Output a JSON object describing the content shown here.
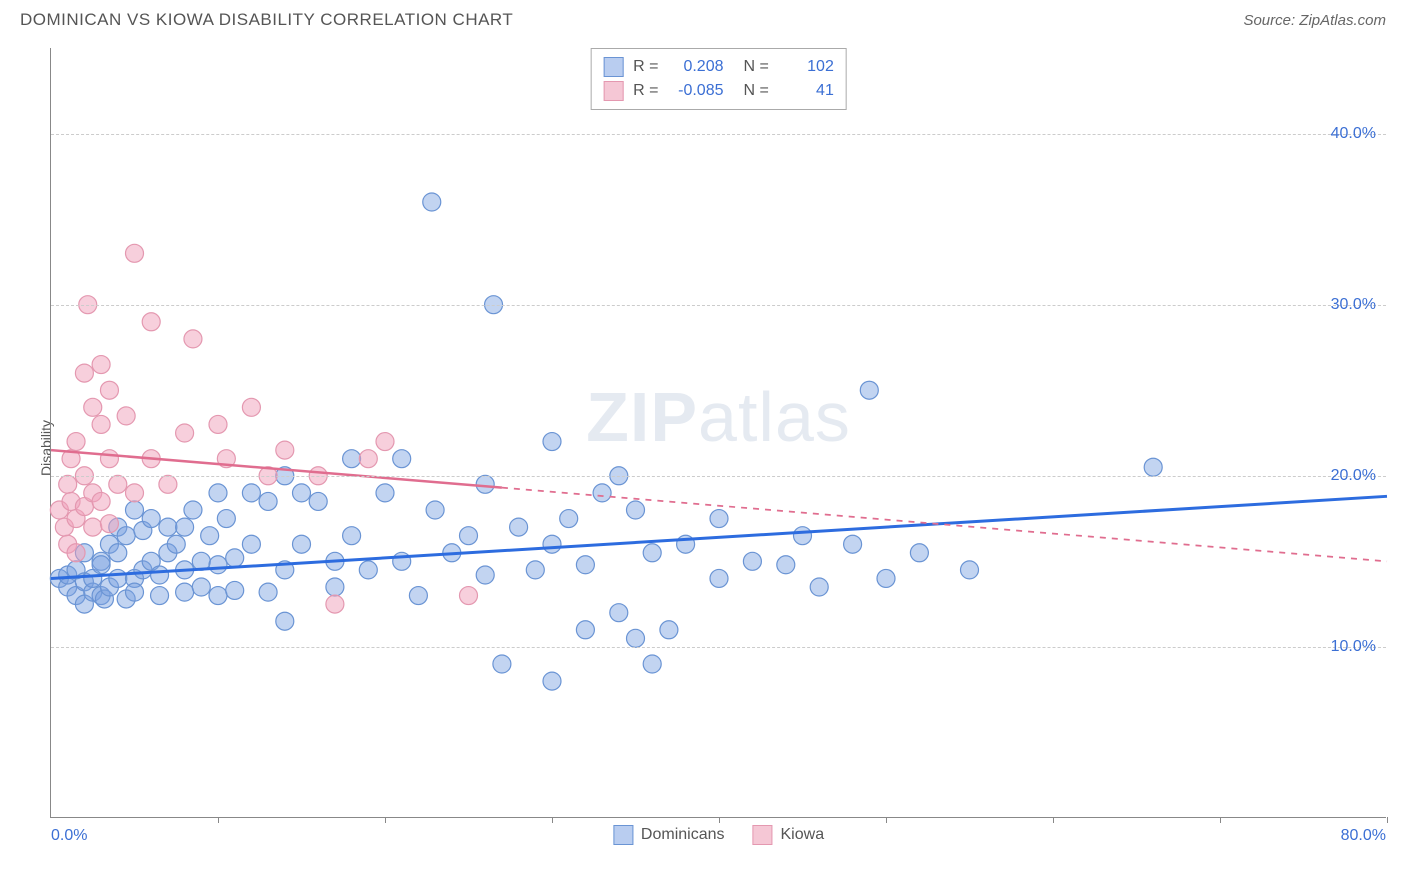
{
  "title": "DOMINICAN VS KIOWA DISABILITY CORRELATION CHART",
  "source": "Source: ZipAtlas.com",
  "watermark_bold": "ZIP",
  "watermark_light": "atlas",
  "ylabel": "Disability",
  "chart": {
    "type": "scatter",
    "xlim": [
      0,
      80
    ],
    "ylim": [
      0,
      45
    ],
    "background_color": "#ffffff",
    "grid_color": "#cccccc",
    "axis_color": "#888888",
    "tick_label_color": "#3b6fd4",
    "tick_fontsize": 16,
    "label_fontsize": 14,
    "gridlines_y": [
      10,
      20,
      30,
      40
    ],
    "ytick_labels": {
      "10": "10.0%",
      "20": "20.0%",
      "30": "30.0%",
      "40": "40.0%"
    },
    "xtick_positions": [
      0,
      10,
      20,
      30,
      40,
      50,
      60,
      70,
      80
    ],
    "xlim_label_left": "0.0%",
    "xlim_label_right": "80.0%",
    "marker_radius": 9,
    "marker_stroke_width": 1.2,
    "series": [
      {
        "name": "Dominicans",
        "color_fill": "rgba(120,160,225,0.45)",
        "color_stroke": "#6a94d4",
        "swatch_fill": "#b9cdf0",
        "swatch_border": "#6a94d4",
        "R": "0.208",
        "N": "102",
        "trend": {
          "x1": 0,
          "y1": 14,
          "x2": 80,
          "y2": 18.8,
          "solid_until_x": 80,
          "color": "#2d6cdf",
          "width": 3
        },
        "points": [
          [
            0.5,
            14
          ],
          [
            1,
            13.5
          ],
          [
            1,
            14.2
          ],
          [
            1.5,
            13
          ],
          [
            1.5,
            14.5
          ],
          [
            2,
            12.5
          ],
          [
            2,
            13.8
          ],
          [
            2,
            15.5
          ],
          [
            2.5,
            13.2
          ],
          [
            2.5,
            14
          ],
          [
            3,
            15
          ],
          [
            3,
            13
          ],
          [
            3,
            14.8
          ],
          [
            3.2,
            12.8
          ],
          [
            3.5,
            16
          ],
          [
            3.5,
            13.5
          ],
          [
            4,
            14
          ],
          [
            4,
            15.5
          ],
          [
            4,
            17
          ],
          [
            4.5,
            12.8
          ],
          [
            4.5,
            16.5
          ],
          [
            5,
            14
          ],
          [
            5,
            18
          ],
          [
            5,
            13.2
          ],
          [
            5.5,
            16.8
          ],
          [
            5.5,
            14.5
          ],
          [
            6,
            15
          ],
          [
            6,
            17.5
          ],
          [
            6.5,
            13
          ],
          [
            6.5,
            14.2
          ],
          [
            7,
            17
          ],
          [
            7,
            15.5
          ],
          [
            7.5,
            16
          ],
          [
            8,
            13.2
          ],
          [
            8,
            14.5
          ],
          [
            8,
            17
          ],
          [
            8.5,
            18
          ],
          [
            9,
            15
          ],
          [
            9,
            13.5
          ],
          [
            9.5,
            16.5
          ],
          [
            10,
            13
          ],
          [
            10,
            14.8
          ],
          [
            10,
            19
          ],
          [
            10.5,
            17.5
          ],
          [
            11,
            15.2
          ],
          [
            11,
            13.3
          ],
          [
            12,
            19
          ],
          [
            12,
            16
          ],
          [
            13,
            13.2
          ],
          [
            13,
            18.5
          ],
          [
            14,
            20
          ],
          [
            14,
            14.5
          ],
          [
            14,
            11.5
          ],
          [
            15,
            16
          ],
          [
            15,
            19
          ],
          [
            16,
            18.5
          ],
          [
            17,
            15
          ],
          [
            17,
            13.5
          ],
          [
            18,
            21
          ],
          [
            18,
            16.5
          ],
          [
            19,
            14.5
          ],
          [
            20,
            19
          ],
          [
            21,
            21
          ],
          [
            21,
            15
          ],
          [
            22,
            13
          ],
          [
            22.8,
            36
          ],
          [
            23,
            18
          ],
          [
            24,
            15.5
          ],
          [
            25,
            16.5
          ],
          [
            26,
            14.2
          ],
          [
            26,
            19.5
          ],
          [
            26.5,
            30
          ],
          [
            27,
            9
          ],
          [
            28,
            17
          ],
          [
            29,
            14.5
          ],
          [
            30,
            22
          ],
          [
            30,
            16
          ],
          [
            30,
            8
          ],
          [
            31,
            17.5
          ],
          [
            32,
            14.8
          ],
          [
            32,
            11
          ],
          [
            33,
            19
          ],
          [
            34,
            12
          ],
          [
            35,
            18
          ],
          [
            35,
            10.5
          ],
          [
            36,
            15.5
          ],
          [
            36,
            9
          ],
          [
            38,
            16
          ],
          [
            40,
            14
          ],
          [
            40,
            17.5
          ],
          [
            42,
            15
          ],
          [
            44,
            14.8
          ],
          [
            45,
            16.5
          ],
          [
            46,
            13.5
          ],
          [
            48,
            16
          ],
          [
            49,
            25
          ],
          [
            50,
            14
          ],
          [
            52,
            15.5
          ],
          [
            55,
            14.5
          ],
          [
            66,
            20.5
          ],
          [
            34,
            20
          ],
          [
            37,
            11
          ]
        ]
      },
      {
        "name": "Kiowa",
        "color_fill": "rgba(240,160,185,0.5)",
        "color_stroke": "#e498b0",
        "swatch_fill": "#f5c7d5",
        "swatch_border": "#e498b0",
        "R": "-0.085",
        "N": "41",
        "trend": {
          "x1": 0,
          "y1": 21.5,
          "x2": 80,
          "y2": 15,
          "solid_until_x": 27,
          "color": "#e06d8f",
          "width": 2.5
        },
        "points": [
          [
            0.5,
            18
          ],
          [
            0.8,
            17
          ],
          [
            1,
            19.5
          ],
          [
            1,
            16
          ],
          [
            1.2,
            18.5
          ],
          [
            1.2,
            21
          ],
          [
            1.5,
            15.5
          ],
          [
            1.5,
            17.5
          ],
          [
            1.5,
            22
          ],
          [
            2,
            18.2
          ],
          [
            2,
            20
          ],
          [
            2,
            26
          ],
          [
            2.2,
            30
          ],
          [
            2.5,
            17
          ],
          [
            2.5,
            19
          ],
          [
            2.5,
            24
          ],
          [
            3,
            18.5
          ],
          [
            3,
            23
          ],
          [
            3,
            26.5
          ],
          [
            3.5,
            17.2
          ],
          [
            3.5,
            21
          ],
          [
            3.5,
            25
          ],
          [
            4,
            19.5
          ],
          [
            4.5,
            23.5
          ],
          [
            5,
            33
          ],
          [
            5,
            19
          ],
          [
            6,
            21
          ],
          [
            6,
            29
          ],
          [
            7,
            19.5
          ],
          [
            8,
            22.5
          ],
          [
            8.5,
            28
          ],
          [
            10,
            23
          ],
          [
            10.5,
            21
          ],
          [
            12,
            24
          ],
          [
            13,
            20
          ],
          [
            14,
            21.5
          ],
          [
            16,
            20
          ],
          [
            17,
            12.5
          ],
          [
            19,
            21
          ],
          [
            20,
            22
          ],
          [
            25,
            13
          ]
        ]
      }
    ],
    "bottom_legend": [
      {
        "label": "Dominicans",
        "swatch_fill": "#b9cdf0",
        "swatch_border": "#6a94d4"
      },
      {
        "label": "Kiowa",
        "swatch_fill": "#f5c7d5",
        "swatch_border": "#e498b0"
      }
    ],
    "stats_legend_labels": {
      "R": "R =",
      "N": "N ="
    }
  }
}
